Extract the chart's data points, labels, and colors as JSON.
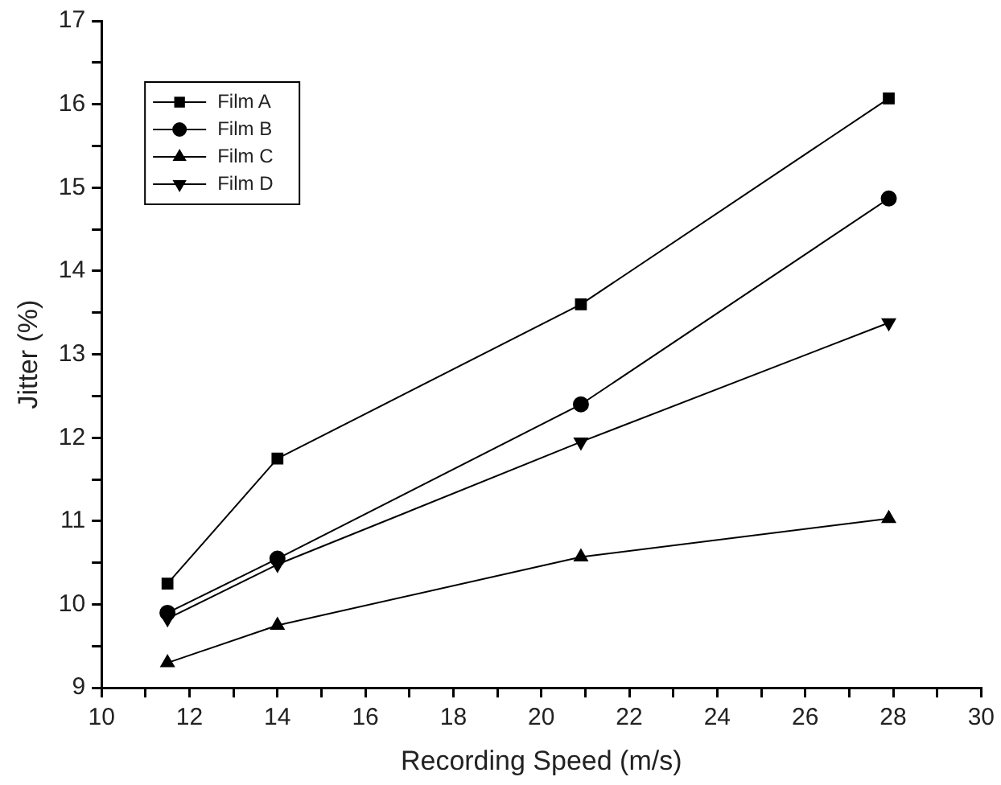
{
  "chart_data": {
    "type": "line",
    "xlabel": "Recording Speed (m/s)",
    "ylabel": "Jitter (%)",
    "x": [
      11.5,
      14,
      20.9,
      27.9
    ],
    "xlim": [
      10,
      30
    ],
    "xticks": [
      10,
      {
        "value": 11,
        "label": null
      },
      12,
      {
        "value": 13,
        "label": null
      },
      14,
      {
        "value": 15,
        "label": null
      },
      16,
      {
        "value": 17,
        "label": null
      },
      18,
      {
        "value": 19,
        "label": null
      },
      20,
      {
        "value": 21,
        "label": null
      },
      22,
      {
        "value": 23,
        "label": null
      },
      24,
      {
        "value": 25,
        "label": null
      },
      26,
      {
        "value": 27,
        "label": null
      },
      28,
      {
        "value": 29,
        "label": null
      },
      30
    ],
    "ylim": [
      9,
      17
    ],
    "yticks": [
      9,
      {
        "value": 9.5,
        "label": null
      },
      10,
      {
        "value": 10.5,
        "label": null
      },
      11,
      {
        "value": 11.5,
        "label": null
      },
      12,
      {
        "value": 12.5,
        "label": null
      },
      13,
      {
        "value": 13.5,
        "label": null
      },
      14,
      {
        "value": 14.5,
        "label": null
      },
      15,
      {
        "value": 15.5,
        "label": null
      },
      16,
      {
        "value": 16.5,
        "label": null
      },
      17
    ],
    "grid": false,
    "legend": "top left",
    "line_style": "solid",
    "series": [
      {
        "name": "Film A",
        "color": "#000000",
        "marker": "square",
        "values": [
          10.25,
          11.75,
          13.6,
          16.07
        ]
      },
      {
        "name": "Film B",
        "color": "#000000",
        "marker": "circle",
        "values": [
          9.9,
          10.55,
          12.4,
          14.87
        ]
      },
      {
        "name": "Film C",
        "color": "#000000",
        "marker": "triangle",
        "values": [
          9.3,
          9.75,
          10.57,
          11.03
        ]
      },
      {
        "name": "Film D",
        "color": "#000000",
        "marker": "triangle-down",
        "values": [
          9.83,
          10.48,
          11.95,
          13.38
        ]
      }
    ]
  }
}
